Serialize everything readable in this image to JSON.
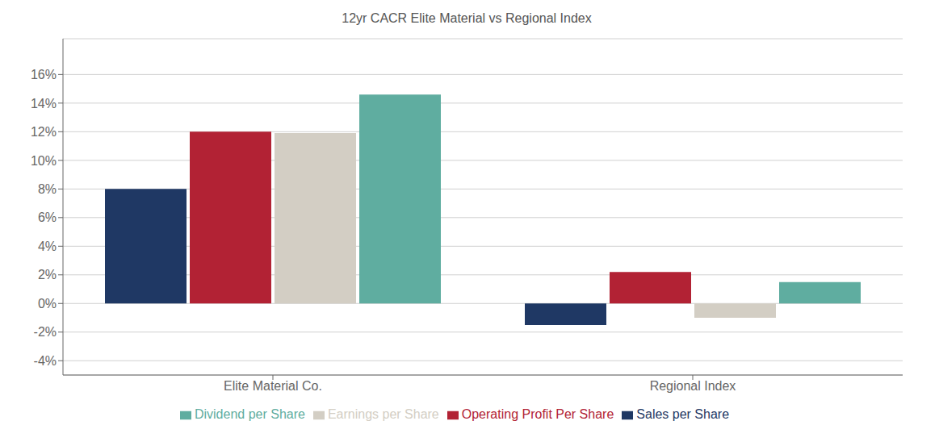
{
  "chart_data": {
    "type": "bar",
    "title": "12yr CACR Elite Material vs Regional Index",
    "categories": [
      "Elite Material Co.",
      "Regional Index"
    ],
    "series": [
      {
        "name": "Sales per Share",
        "color": "#1f3864",
        "values": [
          0.08,
          -0.015
        ]
      },
      {
        "name": "Operating Profit Per Share",
        "color": "#b22234",
        "values": [
          0.12,
          0.022
        ]
      },
      {
        "name": "Earnings per Share",
        "color": "#d3cec4",
        "values": [
          0.119,
          -0.01
        ]
      },
      {
        "name": "Dividend per Share",
        "color": "#5fada0",
        "values": [
          0.146,
          0.015
        ]
      }
    ],
    "ylim": [
      -0.05,
      0.185
    ],
    "yticks": [
      {
        "value": -0.04,
        "label": "-4%"
      },
      {
        "value": -0.02,
        "label": "-2%"
      },
      {
        "value": 0.0,
        "label": "0%"
      },
      {
        "value": 0.02,
        "label": "2%"
      },
      {
        "value": 0.04,
        "label": "4%"
      },
      {
        "value": 0.06,
        "label": "6%"
      },
      {
        "value": 0.08,
        "label": "8%"
      },
      {
        "value": 0.1,
        "label": "10%"
      },
      {
        "value": 0.12,
        "label": "12%"
      },
      {
        "value": 0.14,
        "label": "14%"
      },
      {
        "value": 0.16,
        "label": "16%"
      }
    ],
    "grid": true,
    "legend": "bottom"
  }
}
